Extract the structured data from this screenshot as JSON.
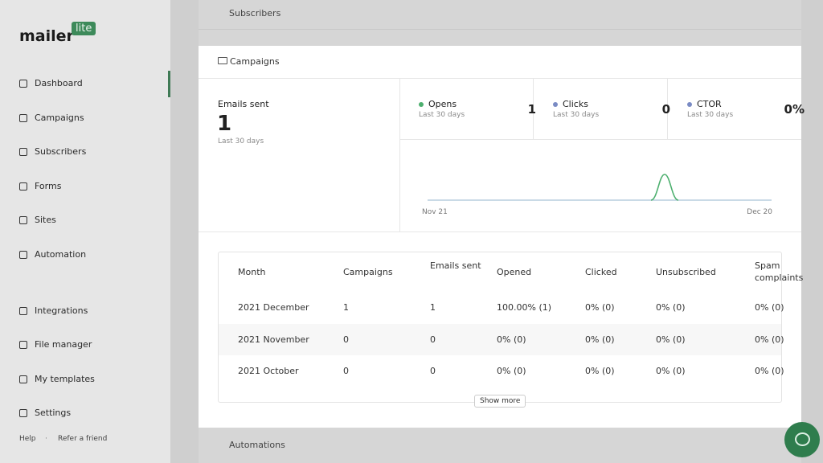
{
  "sidebar": {
    "logo": "mailer",
    "logo_badge": "lite",
    "nav": [
      "Dashboard",
      "Campaigns",
      "Subscribers",
      "Forms",
      "Sites",
      "Automation",
      "Integrations",
      "File manager",
      "My templates",
      "Settings"
    ],
    "footer": [
      "Help",
      "Refer a friend"
    ]
  },
  "background": {
    "top_section": "Subscribers",
    "bottom_section": "Automations"
  },
  "panel": {
    "title": "Campaigns",
    "emails_sent": {
      "label": "Emails sent",
      "value": 1,
      "period": "Last 30 days"
    },
    "stats": [
      {
        "label": "Opens",
        "period": "Last 30 days",
        "value": 1
      },
      {
        "label": "Clicks",
        "period": "Last 30 days",
        "value": 0
      },
      {
        "label": "CTOR",
        "period": "Last 30 days",
        "value": "0%"
      }
    ],
    "chart": {
      "x_start": "Nov 21",
      "x_end": "Dec 20"
    },
    "table": {
      "headers": [
        "Month",
        "Campaigns",
        "Emails sent",
        "Opened",
        "Clicked",
        "Unsubscribed",
        "Spam complaints"
      ],
      "rows": [
        [
          "2021 December",
          1,
          1,
          "100.00% (1)",
          "0% (0)",
          "0% (0)",
          "0% (0)"
        ],
        [
          "2021 November",
          0,
          0,
          "0% (0)",
          "0% (0)",
          "0% (0)",
          "0% (0)"
        ],
        [
          "2021 October",
          0,
          0,
          "0% (0)",
          "0% (0)",
          "0% (0)",
          "0% (0)"
        ]
      ]
    },
    "show_more": "Show more"
  }
}
